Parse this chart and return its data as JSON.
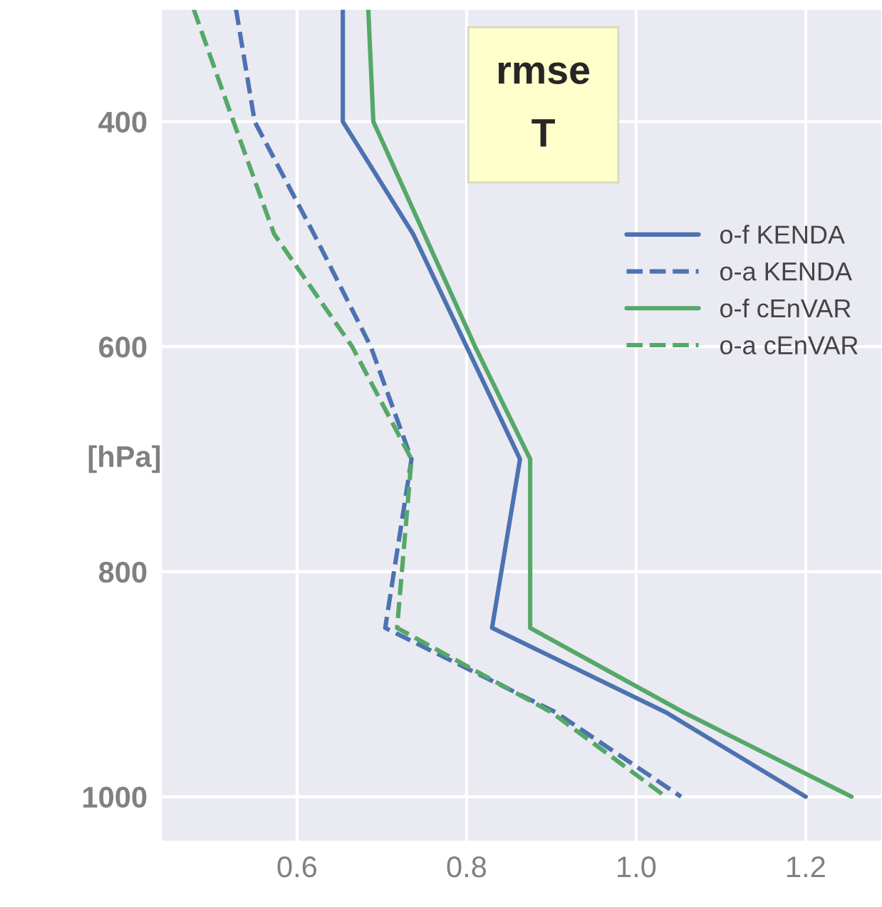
{
  "chart_data": {
    "type": "line",
    "title": "rmse\nT",
    "ylabel": "[hPa]",
    "series": [
      {
        "name": "o-f KENDA",
        "color": "#4c72b0",
        "line_style": "solid",
        "x": [
          0.654,
          0.654,
          0.737,
          0.8,
          0.863,
          0.83,
          1.035,
          1.2
        ],
        "values": [
          300,
          400,
          500,
          600,
          700,
          850,
          925,
          1000
        ]
      },
      {
        "name": "o-a KENDA",
        "color": "#4c72b0",
        "line_style": "dashed",
        "x": [
          0.528,
          0.55,
          0.62,
          0.687,
          0.735,
          0.704,
          0.905,
          1.053
        ],
        "values": [
          300,
          400,
          500,
          600,
          700,
          850,
          925,
          1000
        ]
      },
      {
        "name": "o-f cEnVAR",
        "color": "#55a868",
        "line_style": "solid",
        "x": [
          0.684,
          0.69,
          0.75,
          0.81,
          0.875,
          0.875,
          1.056,
          1.254
        ],
        "values": [
          300,
          400,
          500,
          600,
          700,
          850,
          925,
          1000
        ]
      },
      {
        "name": "o-a cEnVAR",
        "color": "#55a868",
        "line_style": "dashed",
        "x": [
          0.478,
          0.525,
          0.573,
          0.665,
          0.735,
          0.718,
          0.9,
          1.035
        ],
        "values": [
          300,
          400,
          500,
          600,
          700,
          850,
          925,
          1000
        ]
      }
    ],
    "xlim": [
      0.44,
      1.29
    ],
    "xticks": [
      0.6,
      0.8,
      {
        "value": 1.0,
        "label": "1.0"
      },
      1.2
    ],
    "ylim": [
      1040,
      300
    ],
    "yticks": [
      400,
      600,
      800,
      1000
    ],
    "grid": true,
    "legend": "center right"
  }
}
